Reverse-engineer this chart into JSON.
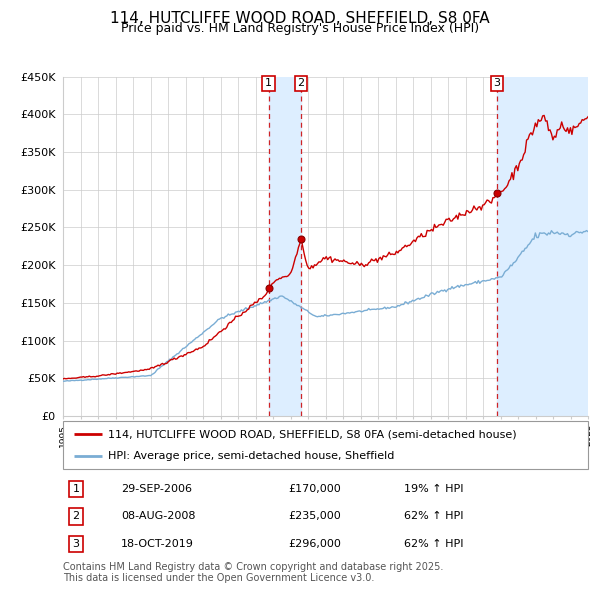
{
  "title": "114, HUTCLIFFE WOOD ROAD, SHEFFIELD, S8 0FA",
  "subtitle": "Price paid vs. HM Land Registry's House Price Index (HPI)",
  "x_start_year": 1995,
  "x_end_year": 2025,
  "ylim": [
    0,
    450000
  ],
  "yticks": [
    0,
    50000,
    100000,
    150000,
    200000,
    250000,
    300000,
    350000,
    400000,
    450000
  ],
  "ytick_labels": [
    "£0",
    "£50K",
    "£100K",
    "£150K",
    "£200K",
    "£250K",
    "£300K",
    "£350K",
    "£400K",
    "£450K"
  ],
  "sale_markers": [
    {
      "label": "1",
      "date_decimal": 2006.75,
      "price": 170000,
      "date_str": "29-SEP-2006",
      "price_str": "£170,000",
      "hpi_str": "19% ↑ HPI"
    },
    {
      "label": "2",
      "date_decimal": 2008.6,
      "price": 235000,
      "date_str": "08-AUG-2008",
      "price_str": "£235,000",
      "hpi_str": "62% ↑ HPI"
    },
    {
      "label": "3",
      "date_decimal": 2019.8,
      "price": 296000,
      "date_str": "18-OCT-2019",
      "price_str": "£296,000",
      "hpi_str": "62% ↑ HPI"
    }
  ],
  "red_line_color": "#cc0000",
  "blue_line_color": "#7aadd4",
  "shading_color": "#ddeeff",
  "dashed_line_color": "#cc0000",
  "grid_color": "#cccccc",
  "background_color": "#ffffff",
  "legend_red_label": "114, HUTCLIFFE WOOD ROAD, SHEFFIELD, S8 0FA (semi-detached house)",
  "legend_blue_label": "HPI: Average price, semi-detached house, Sheffield",
  "footer_text": "Contains HM Land Registry data © Crown copyright and database right 2025.\nThis data is licensed under the Open Government Licence v3.0.",
  "title_fontsize": 11,
  "subtitle_fontsize": 9,
  "tick_fontsize": 8,
  "legend_fontsize": 8,
  "footer_fontsize": 7
}
